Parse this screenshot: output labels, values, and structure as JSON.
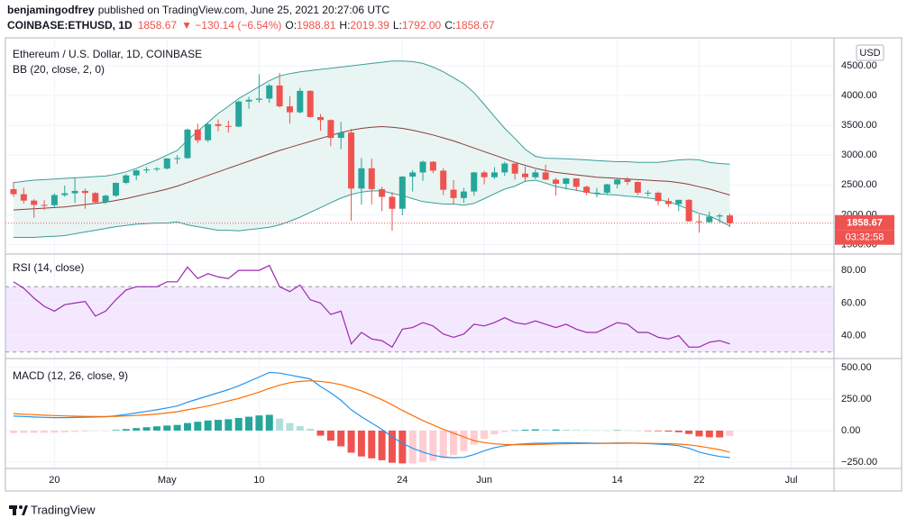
{
  "header": {
    "author": "benjamingodfrey",
    "published": "published on TradingView.com, June 25, 2021 20:27:06 UTC",
    "symbol": "COINBASE:ETHUSD, 1D",
    "price": "1858.67",
    "change": "▼ −130.14 (−6.54%)",
    "ohlc": [
      {
        "label": "O:",
        "value": "1988.81"
      },
      {
        "label": "H:",
        "value": "2019.39"
      },
      {
        "label": "L:",
        "value": "1792.00"
      },
      {
        "label": "C:",
        "value": "1858.67"
      }
    ]
  },
  "footer": {
    "brand": "TradingView"
  },
  "chart_data": [
    {
      "type": "candlestick",
      "title": "Ethereum / U.S. Dollar, 1D, COINBASE",
      "subtitle": "BB (20, close, 2, 0)",
      "currency": "USD",
      "countdown": "03:32:58",
      "up_color": "#26a69a",
      "down_color": "#ef5350",
      "grid": true,
      "open": [
        2430,
        2345,
        2237,
        2165,
        2160,
        2330,
        2360,
        2400,
        2365,
        2210,
        2320,
        2535,
        2660,
        2745,
        2760,
        2775,
        2945,
        2950,
        3430,
        3250,
        3520,
        3490,
        3480,
        3900,
        3930,
        3950,
        4170,
        3820,
        3720,
        4080,
        3640,
        3590,
        3290,
        3380,
        2440,
        2780,
        2430,
        2300,
        2100,
        2640,
        2710,
        2890,
        2740,
        2420,
        2280,
        2390,
        2710,
        2630,
        2710,
        2860,
        2690,
        2630,
        2710,
        2590,
        2520,
        2610,
        2470,
        2370,
        2370,
        2510,
        2590,
        2550,
        2370,
        2370,
        2230,
        2180,
        2250,
        1890,
        1875,
        1970,
        1988.81,
        null,
        null,
        null,
        null,
        null,
        null
      ],
      "high": [
        2550,
        2450,
        2260,
        2250,
        2360,
        2490,
        2630,
        2440,
        2380,
        2340,
        2540,
        2680,
        2760,
        2800,
        2800,
        2950,
        3000,
        3450,
        3530,
        3550,
        3600,
        3580,
        3920,
        3980,
        4360,
        4200,
        4380,
        3990,
        4130,
        4090,
        3690,
        3600,
        3560,
        3440,
        2950,
        2940,
        2470,
        2380,
        2650,
        2750,
        2910,
        2900,
        2780,
        2580,
        2450,
        2720,
        2740,
        2800,
        2890,
        2860,
        2810,
        2760,
        2840,
        2620,
        2620,
        2610,
        2490,
        2450,
        2520,
        2600,
        2630,
        2560,
        2410,
        2390,
        2280,
        2250,
        2260,
        2000,
        2050,
        2020,
        2019.39,
        null,
        null,
        null,
        null,
        null,
        null
      ],
      "low": [
        2300,
        2190,
        1950,
        2080,
        2120,
        2300,
        2200,
        2100,
        2190,
        2180,
        2300,
        2510,
        2580,
        2700,
        2730,
        2760,
        2850,
        2940,
        3200,
        3220,
        3400,
        3380,
        3470,
        3780,
        3880,
        3880,
        3800,
        3530,
        3700,
        3630,
        3410,
        3150,
        3100,
        1900,
        2170,
        2170,
        2060,
        1730,
        1990,
        2390,
        2570,
        2700,
        2330,
        2180,
        2200,
        2320,
        2510,
        2600,
        2650,
        2590,
        2560,
        2600,
        2580,
        2320,
        2420,
        2400,
        2330,
        2290,
        2330,
        2440,
        2500,
        2330,
        2310,
        2160,
        2130,
        2060,
        1880,
        1700,
        1870,
        1870,
        1792,
        null,
        null,
        null,
        null,
        null,
        null
      ],
      "close": [
        2345,
        2237,
        2165,
        2160,
        2330,
        2360,
        2400,
        2365,
        2210,
        2320,
        2535,
        2660,
        2745,
        2760,
        2775,
        2945,
        2950,
        3430,
        3250,
        3520,
        3490,
        3480,
        3900,
        3930,
        3950,
        4170,
        3820,
        3720,
        4080,
        3640,
        3590,
        3290,
        3380,
        2440,
        2780,
        2430,
        2300,
        2100,
        2640,
        2710,
        2890,
        2740,
        2420,
        2280,
        2390,
        2710,
        2630,
        2710,
        2860,
        2690,
        2630,
        2710,
        2590,
        2520,
        2610,
        2470,
        2370,
        2370,
        2510,
        2590,
        2550,
        2370,
        2370,
        2230,
        2180,
        2250,
        1890,
        1875,
        1970,
        1989,
        1858.67,
        null,
        null,
        null,
        null,
        null,
        null
      ],
      "overlay": {
        "color": "#3a9e98",
        "middle_color": "#8d3b3b",
        "fill_color": "#e8f5f3",
        "upper": [
          2540,
          2560,
          2580,
          2590,
          2600,
          2610,
          2620,
          2630,
          2640,
          2650,
          2680,
          2720,
          2780,
          2850,
          2920,
          3000,
          3080,
          3250,
          3400,
          3550,
          3700,
          3820,
          3950,
          4050,
          4150,
          4250,
          4330,
          4370,
          4400,
          4420,
          4440,
          4460,
          4480,
          4500,
          4520,
          4540,
          4560,
          4580,
          4580,
          4570,
          4540,
          4480,
          4400,
          4300,
          4200,
          4050,
          3850,
          3650,
          3450,
          3280,
          3100,
          2980,
          2950,
          2945,
          2940,
          2930,
          2920,
          2910,
          2900,
          2890,
          2890,
          2880,
          2880,
          2880,
          2900,
          2920,
          2930,
          2920,
          2880,
          2860,
          2850,
          null,
          null,
          null,
          null,
          null,
          null
        ],
        "middle": [
          2080,
          2090,
          2100,
          2110,
          2120,
          2130,
          2150,
          2170,
          2190,
          2210,
          2240,
          2270,
          2310,
          2350,
          2390,
          2430,
          2480,
          2540,
          2600,
          2660,
          2720,
          2780,
          2840,
          2900,
          2960,
          3020,
          3080,
          3130,
          3180,
          3230,
          3280,
          3330,
          3380,
          3420,
          3450,
          3470,
          3480,
          3470,
          3450,
          3420,
          3380,
          3340,
          3290,
          3240,
          3180,
          3120,
          3060,
          3000,
          2940,
          2880,
          2830,
          2780,
          2740,
          2710,
          2690,
          2670,
          2650,
          2630,
          2620,
          2610,
          2600,
          2590,
          2580,
          2570,
          2560,
          2540,
          2510,
          2470,
          2430,
          2380,
          2330,
          null,
          null,
          null,
          null,
          null,
          null
        ],
        "lower": [
          1620,
          1620,
          1620,
          1630,
          1640,
          1650,
          1680,
          1710,
          1740,
          1770,
          1800,
          1820,
          1840,
          1850,
          1860,
          1860,
          1880,
          1830,
          1800,
          1770,
          1740,
          1740,
          1730,
          1750,
          1770,
          1790,
          1830,
          1890,
          1960,
          2040,
          2120,
          2200,
          2280,
          2340,
          2380,
          2400,
          2400,
          2360,
          2320,
          2270,
          2220,
          2200,
          2180,
          2180,
          2160,
          2190,
          2270,
          2350,
          2430,
          2480,
          2560,
          2580,
          2530,
          2475,
          2440,
          2410,
          2380,
          2350,
          2340,
          2330,
          2310,
          2300,
          2280,
          2260,
          2220,
          2160,
          2090,
          2020,
          1980,
          1900,
          1810,
          null,
          null,
          null,
          null,
          null,
          null
        ]
      },
      "ylim": [
        1340,
        4970
      ],
      "yticks": [
        {
          "value": 1500,
          "label": "1500.00"
        },
        {
          "value": 2000,
          "label": "2000.00"
        },
        {
          "value": 2500,
          "label": "2500.00"
        },
        {
          "value": 3000,
          "label": "3000.00"
        },
        {
          "value": 3500,
          "label": "3500.00"
        },
        {
          "value": 4000,
          "label": "4000.00"
        },
        {
          "value": 4500,
          "label": "4500.00"
        }
      ]
    },
    {
      "type": "line",
      "title": "RSI (14, close)",
      "color": "#9c27b0",
      "band": [
        30,
        70
      ],
      "band_color": "#f3e8fd",
      "grid": true,
      "values": [
        73,
        69,
        63,
        58,
        55,
        59,
        60,
        61,
        52,
        55,
        62,
        68,
        70,
        70,
        70,
        73,
        73,
        82,
        75,
        78,
        76,
        75,
        80,
        80,
        80,
        83,
        70,
        67,
        71,
        62,
        60,
        53,
        55,
        35,
        42,
        38,
        37,
        33,
        44,
        45,
        48,
        46,
        41,
        39,
        41,
        47,
        46,
        48,
        51,
        48,
        47,
        49,
        47,
        45,
        47,
        44,
        42,
        42,
        45,
        48,
        47,
        42,
        42,
        39,
        38,
        40,
        33,
        33,
        36,
        37,
        35,
        null,
        null,
        null,
        null,
        null,
        null
      ],
      "ylim": [
        26,
        90
      ],
      "yticks": [
        {
          "value": 40,
          "label": "40.00"
        },
        {
          "value": 60,
          "label": "60.00"
        },
        {
          "value": 80,
          "label": "80.00"
        }
      ]
    },
    {
      "type": "macd",
      "title": "MACD (12, 26, close, 9)",
      "grid": true,
      "categories": [
        null,
        null,
        null,
        null,
        "20",
        null,
        null,
        null,
        null,
        null,
        null,
        null,
        null,
        null,
        null,
        "May",
        null,
        null,
        null,
        null,
        null,
        null,
        null,
        null,
        "10",
        null,
        null,
        null,
        null,
        null,
        null,
        null,
        null,
        null,
        null,
        null,
        null,
        null,
        "24",
        null,
        null,
        null,
        null,
        null,
        null,
        null,
        "Jun",
        null,
        null,
        null,
        null,
        null,
        null,
        null,
        null,
        null,
        null,
        null,
        null,
        "14",
        null,
        null,
        null,
        null,
        null,
        null,
        null,
        "22",
        null,
        null,
        null,
        null,
        null,
        null,
        null,
        null,
        "Jul"
      ],
      "series": [
        {
          "color": "#2196f3",
          "values": [
            115,
            112,
            108,
            105,
            103,
            103,
            104,
            106,
            108,
            110,
            118,
            128,
            140,
            152,
            165,
            180,
            195,
            225,
            250,
            275,
            300,
            325,
            355,
            390,
            425,
            460,
            455,
            440,
            425,
            410,
            350,
            300,
            240,
            165,
            110,
            60,
            10,
            -50,
            -100,
            -140,
            -170,
            -195,
            -210,
            -215,
            -212,
            -190,
            -160,
            -135,
            -120,
            -110,
            -105,
            -100,
            -100,
            -98,
            -97,
            -97,
            -98,
            -100,
            -100,
            -98,
            -98,
            -100,
            -103,
            -107,
            -112,
            -120,
            -140,
            -170,
            -190,
            -205,
            -214,
            null,
            null,
            null,
            null,
            null,
            null
          ]
        },
        {
          "color": "#ff6d00",
          "values": [
            135,
            130,
            126,
            122,
            119,
            116,
            114,
            113,
            112,
            112,
            113,
            116,
            120,
            125,
            131,
            140,
            150,
            165,
            180,
            195,
            215,
            235,
            255,
            280,
            305,
            335,
            360,
            380,
            390,
            395,
            390,
            380,
            365,
            340,
            315,
            280,
            245,
            205,
            160,
            120,
            80,
            45,
            10,
            -20,
            -50,
            -80,
            -95,
            -105,
            -110,
            -112,
            -112,
            -110,
            -108,
            -106,
            -104,
            -103,
            -102,
            -102,
            -101,
            -101,
            -100,
            -100,
            -101,
            -102,
            -104,
            -107,
            -113,
            -124,
            -137,
            -151,
            -171,
            null,
            null,
            null,
            null,
            null,
            null
          ]
        }
      ],
      "histogram": {
        "colors": [
          "#26a69a",
          "#b2dfdb",
          "#ffcdd2",
          "#ef5350"
        ],
        "values": [
          -20,
          -18,
          -18,
          -17,
          -16,
          -13,
          -10,
          -7,
          -4,
          -2,
          5,
          12,
          20,
          27,
          34,
          40,
          45,
          60,
          70,
          80,
          85,
          90,
          100,
          110,
          120,
          125,
          95,
          60,
          35,
          15,
          -40,
          -80,
          -125,
          -175,
          -205,
          -220,
          -235,
          -255,
          -260,
          -260,
          -250,
          -240,
          -220,
          -195,
          -162,
          -110,
          -65,
          -30,
          -10,
          2,
          7,
          10,
          8,
          8,
          7,
          6,
          4,
          2,
          1,
          3,
          2,
          0,
          -2,
          -5,
          -8,
          -13,
          -27,
          -46,
          -53,
          -54,
          -44,
          null,
          null,
          null,
          null,
          null,
          null
        ]
      },
      "ylim": [
        -300,
        571
      ],
      "yticks": [
        {
          "value": -250,
          "label": "−250.00"
        },
        {
          "value": 0,
          "label": "0.00"
        },
        {
          "value": 250,
          "label": "250.00"
        },
        {
          "value": 500,
          "label": "500.00"
        }
      ]
    }
  ]
}
